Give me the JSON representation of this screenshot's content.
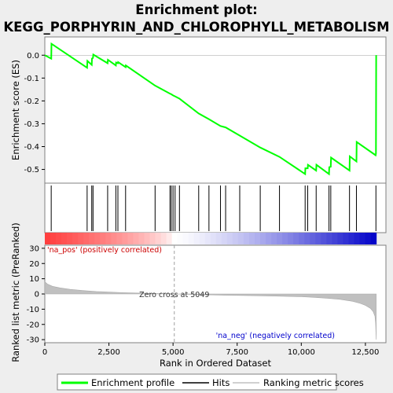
{
  "chart_data": {
    "type": "line",
    "title_line1": "Enrichment plot:",
    "title_line2": "KEGG_PORPHYRIN_AND_CHLOROPHYLL_METABOLISM",
    "top_panel": {
      "ylabel": "Enrichment score (ES)",
      "ylim": [
        -0.56,
        0.08
      ],
      "yticks": [
        0.0,
        -0.1,
        -0.2,
        -0.3,
        -0.4,
        -0.5
      ],
      "ytick_labels": [
        "0.0",
        "-0.1",
        "-0.2",
        "-0.3",
        "-0.4",
        "-0.5"
      ],
      "series": [
        {
          "name": "Enrichment profile",
          "color": "#00ff00",
          "x": [
            0,
            250,
            260,
            1650,
            1660,
            1830,
            1840,
            1880,
            1890,
            2450,
            2460,
            2770,
            2780,
            2850,
            2860,
            3150,
            3160,
            4300,
            4880,
            4930,
            5000,
            5080,
            5250,
            6000,
            6400,
            6850,
            7050,
            7600,
            8400,
            9150,
            10150,
            10160,
            10250,
            10260,
            10580,
            10590,
            11080,
            11090,
            11150,
            11160,
            11880,
            11890,
            12150,
            12160,
            12900,
            12910,
            12920
          ],
          "y": [
            0.0,
            -0.015,
            0.05,
            -0.055,
            -0.025,
            -0.042,
            -0.015,
            -0.012,
            0.003,
            -0.035,
            -0.02,
            -0.045,
            -0.032,
            -0.035,
            -0.03,
            -0.052,
            -0.045,
            -0.133,
            -0.168,
            -0.171,
            -0.176,
            -0.18,
            -0.19,
            -0.255,
            -0.28,
            -0.31,
            -0.316,
            -0.352,
            -0.404,
            -0.445,
            -0.52,
            -0.495,
            -0.495,
            -0.48,
            -0.505,
            -0.48,
            -0.52,
            -0.49,
            -0.488,
            -0.448,
            -0.505,
            -0.443,
            -0.465,
            -0.38,
            -0.438,
            -0.43,
            0.0
          ]
        }
      ]
    },
    "hits_panel": {
      "series_name": "Hits",
      "hit_positions": [
        250,
        1650,
        1830,
        1880,
        2450,
        2770,
        2850,
        3150,
        4300,
        4880,
        4930,
        5000,
        5080,
        5250,
        6000,
        6400,
        6850,
        7050,
        7600,
        8400,
        9150,
        10150,
        10250,
        10580,
        11080,
        11150,
        11880,
        12150,
        12910
      ]
    },
    "bottom_panel": {
      "ylabel": "Ranked list metric (PreRanked)",
      "xlabel": "Rank in Ordered Dataset",
      "ylim": [
        -32,
        32
      ],
      "yticks": [
        30,
        20,
        10,
        0,
        -10,
        -20,
        -30
      ],
      "ytick_labels": [
        "30",
        "20",
        "10",
        "0",
        "-10",
        "-20",
        "-30"
      ],
      "series_name": "Ranking metric scores",
      "metric_x": [
        0,
        100,
        300,
        600,
        1000,
        1500,
        2000,
        3000,
        4000,
        5049,
        6000,
        7000,
        8000,
        9000,
        10000,
        10500,
        11000,
        11500,
        12000,
        12300,
        12500,
        12700,
        12800,
        12870,
        12900,
        12920
      ],
      "metric_y": [
        8.0,
        6.5,
        5.0,
        4.0,
        3.0,
        2.2,
        1.6,
        0.9,
        0.4,
        0.0,
        -0.4,
        -0.8,
        -1.1,
        -1.4,
        -1.8,
        -2.2,
        -2.8,
        -3.5,
        -4.8,
        -6.2,
        -7.5,
        -9.5,
        -11.5,
        -14.5,
        -19.0,
        -30.0
      ],
      "zero_cross": 5049,
      "zero_cross_label": "Zero cross at 5049",
      "pos_label": "'na_pos' (positively correlated)",
      "neg_label": "'na_neg' (negatively correlated)",
      "pos_label_color": "#cc0000",
      "neg_label_color": "#0000cc"
    },
    "xlim": [
      0,
      13300
    ],
    "xticks": [
      0,
      2500,
      5000,
      7500,
      10000,
      12500
    ],
    "xtick_labels": [
      "0",
      "2,500",
      "5,000",
      "7,500",
      "10,000",
      "12,500"
    ],
    "n_genes": 12920
  },
  "legend": {
    "items": [
      {
        "label": "Enrichment profile",
        "color": "#00ff00"
      },
      {
        "label": "Hits",
        "color": "#000000"
      },
      {
        "label": "Ranking metric scores",
        "color": "#c0c0c0"
      }
    ]
  }
}
